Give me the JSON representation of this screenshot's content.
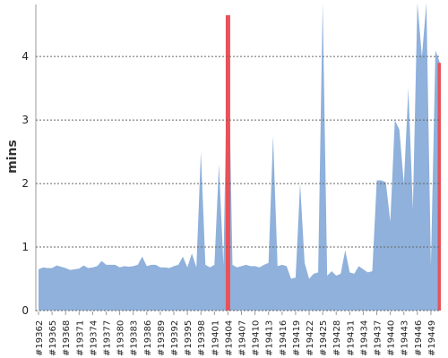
{
  "chart_data": {
    "type": "area",
    "y_label": "mins",
    "categories": [
      "#19362",
      null,
      null,
      "#19365",
      null,
      null,
      "#19368",
      null,
      null,
      "#19371",
      null,
      null,
      "#19374",
      null,
      null,
      "#19377",
      null,
      null,
      "#19380",
      null,
      null,
      "#19383",
      null,
      null,
      "#19386",
      null,
      null,
      "#19389",
      null,
      null,
      "#19392",
      null,
      null,
      "#19395",
      null,
      null,
      "#19398",
      null,
      null,
      "#19401",
      null,
      null,
      "#19404",
      null,
      null,
      "#19407",
      null,
      null,
      "#19410",
      null,
      null,
      "#19413",
      null,
      null,
      "#19416",
      null,
      null,
      "#19419",
      null,
      null,
      "#19422",
      null,
      null,
      "#19425",
      null,
      null,
      "#19428",
      null,
      null,
      "#19431",
      null,
      null,
      "#19434",
      null,
      null,
      "#19437",
      null,
      null,
      "#19440",
      null,
      null,
      "#19443",
      null,
      null,
      "#19446",
      null,
      null,
      "#19449",
      null,
      null
    ],
    "series": [
      {
        "color": "#8fb1db",
        "values": [
          0.65,
          0.68,
          0.67,
          0.67,
          0.71,
          0.69,
          0.67,
          0.64,
          0.65,
          0.66,
          0.71,
          0.67,
          0.68,
          0.7,
          0.78,
          0.72,
          0.72,
          0.72,
          0.68,
          0.7,
          0.69,
          0.7,
          0.72,
          0.85,
          0.7,
          0.72,
          0.72,
          0.68,
          0.68,
          0.67,
          0.7,
          0.72,
          0.85,
          0.68,
          0.9,
          0.68,
          2.5,
          0.72,
          0.68,
          0.72,
          2.3,
          0.72,
          4.65,
          0.72,
          0.68,
          0.7,
          0.72,
          0.7,
          0.7,
          0.68,
          0.72,
          0.75,
          2.75,
          0.7,
          0.72,
          0.7,
          0.5,
          0.52,
          2.0,
          0.75,
          0.5,
          0.58,
          0.6,
          4.85,
          0.55,
          0.62,
          0.55,
          0.58,
          0.95,
          0.6,
          0.58,
          0.7,
          0.65,
          0.6,
          0.62,
          2.05,
          2.05,
          2.02,
          1.4,
          3.0,
          2.85,
          2.0,
          3.5,
          1.6,
          4.85,
          4.0,
          4.85,
          0.7,
          4.1,
          3.9
        ]
      },
      {
        "color": "#e8525a",
        "values": [
          null,
          null,
          null,
          null,
          null,
          null,
          null,
          null,
          null,
          null,
          null,
          null,
          null,
          null,
          null,
          null,
          null,
          null,
          null,
          null,
          null,
          null,
          null,
          null,
          null,
          null,
          null,
          null,
          null,
          null,
          null,
          null,
          null,
          null,
          null,
          null,
          null,
          null,
          null,
          null,
          null,
          null,
          4.65,
          null,
          null,
          null,
          null,
          null,
          null,
          null,
          null,
          null,
          null,
          null,
          null,
          null,
          null,
          null,
          null,
          null,
          null,
          null,
          null,
          null,
          null,
          null,
          null,
          null,
          null,
          null,
          null,
          null,
          null,
          null,
          null,
          null,
          null,
          null,
          null,
          null,
          null,
          null,
          null,
          null,
          null,
          null,
          null,
          null,
          null,
          3.9
        ]
      }
    ],
    "ylim": [
      0,
      4.82
    ],
    "yticks": [
      0,
      1,
      2,
      3,
      4
    ],
    "grid": true
  }
}
